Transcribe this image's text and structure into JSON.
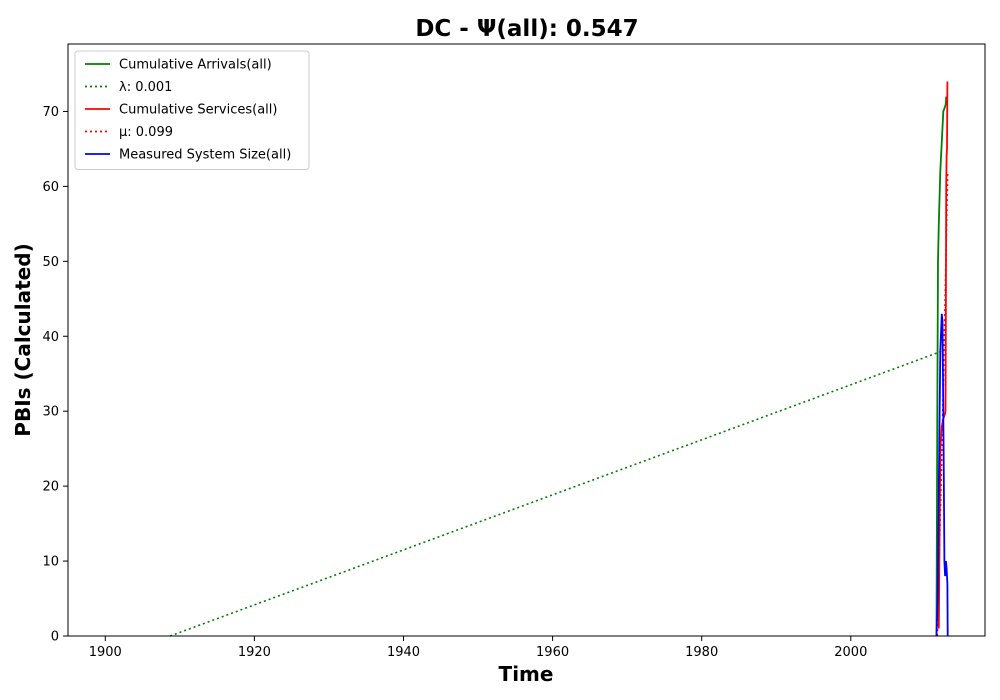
{
  "chart_data": {
    "type": "line",
    "title": "DC -  Ψ(all): 0.547",
    "xlabel": "Time",
    "ylabel": "PBIs (Calculated)",
    "xlim": [
      1895,
      2018
    ],
    "ylim": [
      0,
      79
    ],
    "x_ticks": [
      1900,
      1920,
      1940,
      1960,
      1980,
      2000
    ],
    "y_ticks": [
      0,
      10,
      20,
      30,
      40,
      50,
      60,
      70
    ],
    "grid": false,
    "legend_position": "top-left",
    "series": [
      {
        "name": "Cumulative Arrivals(all)",
        "color": "#008000",
        "style": "solid",
        "x": [
          2011.5,
          2011.6,
          2011.7,
          2011.8,
          2012.0,
          2012.2,
          2012.4,
          2012.6,
          2012.75,
          2012.8
        ],
        "y": [
          0,
          30,
          50,
          55,
          62,
          66,
          70,
          70.5,
          71,
          72
        ]
      },
      {
        "name": "λ: 0.001",
        "color": "#008000",
        "style": "dotted",
        "x": [
          1908.7,
          2012.2
        ],
        "y": [
          0,
          38
        ]
      },
      {
        "name": "Cumulative Services(all)",
        "color": "#ff0000",
        "style": "solid",
        "x": [
          2011.8,
          2012.0,
          2012.2,
          2012.4,
          2012.6,
          2012.7,
          2012.75,
          2012.8,
          2012.85,
          2012.9,
          2012.95
        ],
        "y": [
          1,
          25,
          28,
          29,
          29.5,
          30,
          45,
          60,
          64,
          65,
          74
        ]
      },
      {
        "name": "μ: 0.099",
        "color": "#ff0000",
        "style": "dotted",
        "x": [
          2011.6,
          2012.3,
          2013.0
        ],
        "y": [
          0,
          28,
          62
        ]
      },
      {
        "name": "Measured System Size(all)",
        "color": "#0000ff",
        "style": "solid",
        "x": [
          2011.5,
          2011.65,
          2011.8,
          2012.0,
          2012.2,
          2012.3,
          2012.45,
          2012.55,
          2012.65,
          2012.75,
          2012.85,
          2012.95,
          2013.0
        ],
        "y": [
          0,
          5,
          20,
          38,
          43,
          42,
          25,
          10,
          8,
          10,
          9,
          7,
          0
        ]
      }
    ]
  }
}
